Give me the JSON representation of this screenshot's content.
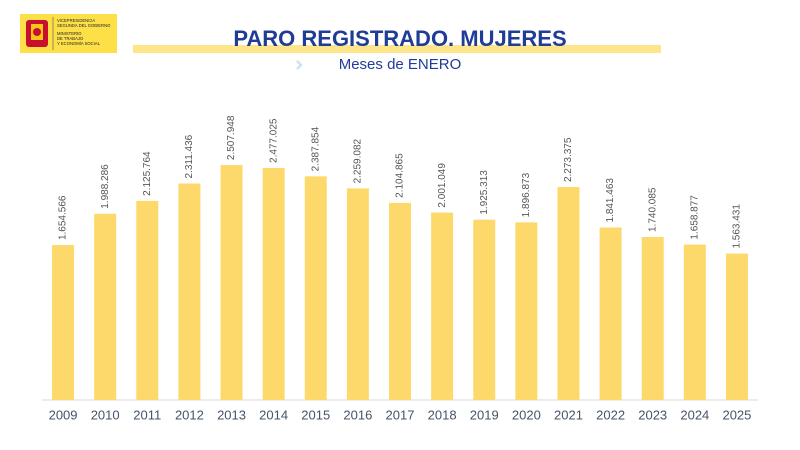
{
  "header": {
    "logo_lines": [
      "VICEPRESIDENCIA",
      "SEGUNDA DEL GOBIERNO",
      "MINISTERIO",
      "DE TRABAJO",
      "Y ECONOMÍA SOCIAL"
    ]
  },
  "chart_data": {
    "type": "bar",
    "title": "PARO REGISTRADO. MUJERES",
    "subtitle": "Meses de ENERO",
    "categories": [
      "2009",
      "2010",
      "2011",
      "2012",
      "2013",
      "2014",
      "2015",
      "2016",
      "2017",
      "2018",
      "2019",
      "2020",
      "2021",
      "2022",
      "2023",
      "2024",
      "2025"
    ],
    "values": [
      1654566,
      1988286,
      2125764,
      2311436,
      2507948,
      2477025,
      2387854,
      2259082,
      2104865,
      2001049,
      1925313,
      1896873,
      2273375,
      1841463,
      1740085,
      1658877,
      1563431
    ],
    "value_labels": [
      "1.654.566",
      "1.988.286",
      "2.125.764",
      "2.311.436",
      "2.507.948",
      "2.477.025",
      "2.387.854",
      "2.259.082",
      "2.104.865",
      "2.001.049",
      "1.925.313",
      "1.896.873",
      "2.273.375",
      "1.841.463",
      "1.740.085",
      "1.658.877",
      "1.563.431"
    ],
    "color": "#fdd96b",
    "ylim": [
      0,
      3000000
    ]
  }
}
